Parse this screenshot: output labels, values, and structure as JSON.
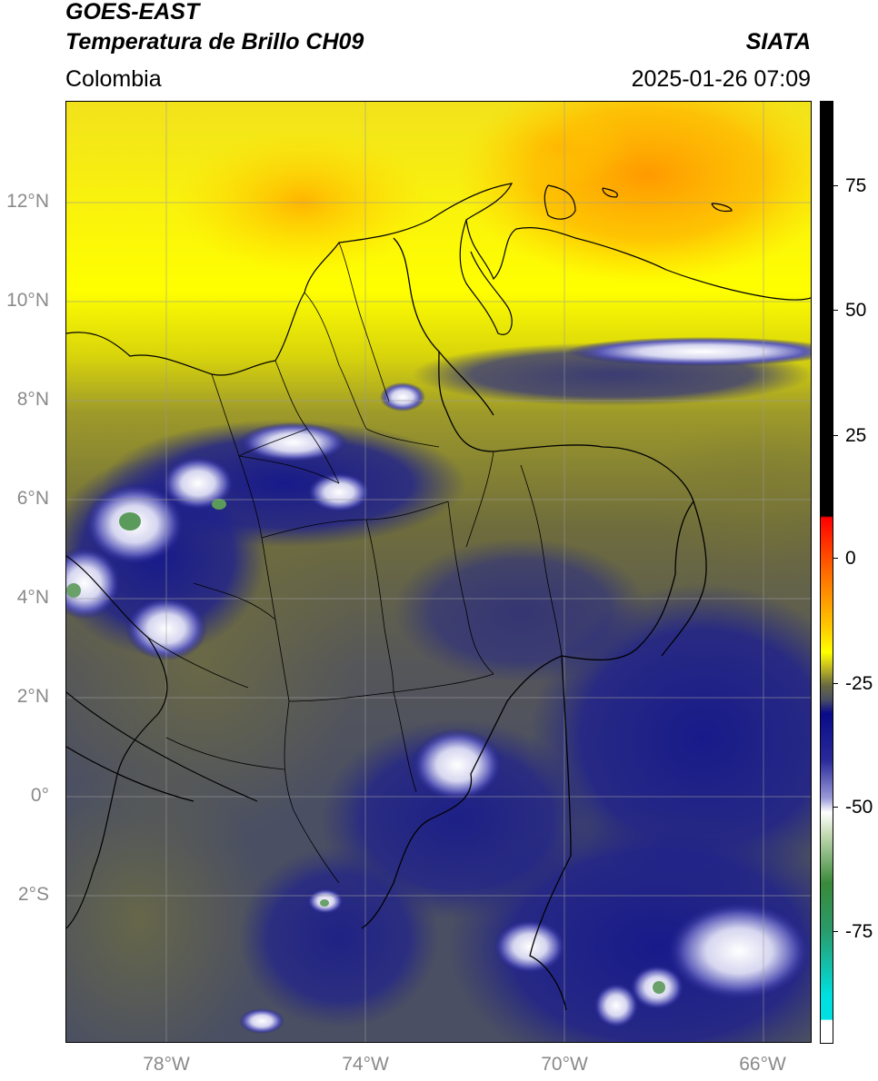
{
  "header": {
    "satellite": "GOES-EAST",
    "product": "Temperatura de Brillo CH09",
    "brand": "SIATA",
    "region": "Colombia",
    "timestamp": "2025-01-26 07:09"
  },
  "map": {
    "lat_labels": [
      "12°N",
      "10°N",
      "8°N",
      "6°N",
      "4°N",
      "2°N",
      "0°",
      "2°S"
    ],
    "lon_labels": [
      "78°W",
      "74°W",
      "70°W",
      "66°W"
    ],
    "colors": {
      "warm_yellow": "#ffff00",
      "orange": "#ffa000",
      "olive": "#7a7a30",
      "slate": "#4a4f63",
      "navy": "#1a1a8a",
      "white": "#ffffff",
      "green": "#3a8a3a"
    }
  },
  "colorbar": {
    "labels": [
      "75",
      "50",
      "25",
      "0",
      "-25",
      "-50",
      "-75"
    ],
    "min": -95,
    "max": 90
  }
}
